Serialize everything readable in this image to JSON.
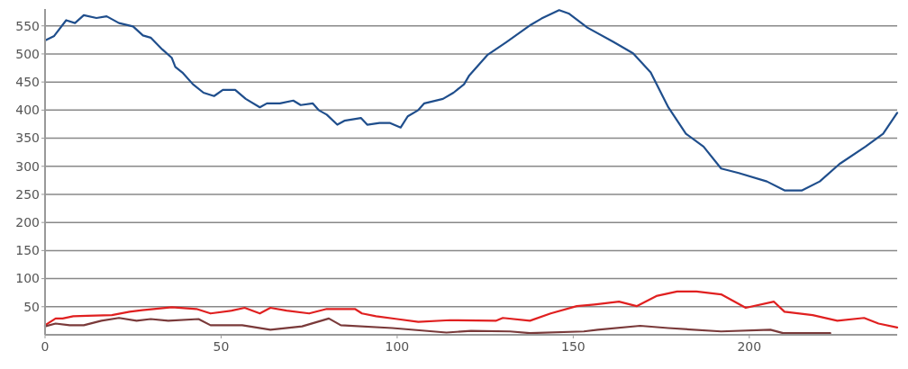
{
  "chart_data": {
    "type": "line",
    "xlim": [
      0,
      242
    ],
    "ylim": [
      0,
      580
    ],
    "xticks": [
      0,
      50,
      100,
      150,
      200
    ],
    "yticks": [
      50,
      100,
      150,
      200,
      250,
      300,
      350,
      400,
      450,
      500,
      550
    ],
    "grid": "y",
    "marker": "none",
    "line_style": "solid",
    "series": [
      {
        "color": "#1f4e8c",
        "x": [
          0,
          2.6,
          6,
          8.5,
          11,
          14.6,
          17.5,
          21,
          25,
          27.8,
          30,
          33.3,
          36,
          37,
          39,
          42,
          45,
          48,
          50.5,
          54,
          57,
          61,
          63,
          66.7,
          70.5,
          72.6,
          76,
          77.7,
          80,
          83,
          85,
          89.7,
          91.5,
          95,
          98,
          101,
          103,
          106,
          107.7,
          113,
          116,
          119,
          120.5,
          125.6,
          131,
          138,
          141,
          146,
          148.7,
          154,
          161.5,
          167,
          172,
          177,
          182,
          187,
          192,
          197,
          205,
          210,
          215,
          220,
          225.6,
          233,
          238,
          242
        ],
        "values": [
          524,
          532,
          560,
          555,
          569,
          564,
          567,
          555,
          549,
          533,
          529,
          508,
          493,
          477,
          467,
          446,
          431,
          425,
          436,
          436,
          420,
          405,
          412,
          412,
          417,
          409,
          412,
          400,
          392,
          374,
          381,
          386,
          374,
          377,
          377,
          369,
          389,
          400,
          412,
          420,
          431,
          446,
          462,
          498,
          521,
          552,
          563,
          578,
          572,
          547,
          521,
          501,
          467,
          405,
          358,
          335,
          296,
          288,
          273,
          257,
          257,
          273,
          304,
          335,
          358,
          395
        ]
      },
      {
        "color": "#e02020",
        "x": [
          0,
          3,
          5,
          8,
          12,
          19,
          24,
          27.6,
          36,
          43,
          47,
          53,
          56.7,
          61,
          64,
          68.6,
          75,
          80,
          88,
          90,
          94,
          100,
          106,
          115,
          128,
          130,
          137.7,
          143.6,
          151,
          156,
          163,
          168,
          173.6,
          179.5,
          185,
          192,
          199,
          207,
          210,
          218,
          225,
          232.6,
          236.7,
          242
        ],
        "values": [
          17,
          29,
          29,
          33,
          34,
          35,
          41,
          44,
          49,
          46,
          38,
          43,
          48,
          38,
          48,
          43,
          38,
          46,
          46,
          38,
          33,
          28,
          23,
          26,
          25,
          30,
          25,
          38,
          51,
          54,
          59,
          51,
          69,
          77,
          77,
          72,
          48,
          59,
          41,
          35,
          25,
          30,
          20,
          13
        ]
      },
      {
        "color": "#7a3a3a",
        "x": [
          0,
          3,
          7,
          11,
          16,
          21,
          26,
          30,
          35,
          43.6,
          47,
          56,
          64,
          73,
          80.6,
          84,
          98.6,
          114,
          121,
          132,
          137.7,
          153,
          157,
          169,
          177,
          192,
          206,
          209.6,
          223
        ],
        "values": [
          15,
          20,
          17,
          17,
          25,
          30,
          25,
          28,
          25,
          28,
          17,
          17,
          9,
          15,
          29,
          17,
          12,
          4,
          7,
          6,
          3,
          6,
          9,
          16,
          12,
          6,
          9,
          3,
          3
        ]
      }
    ]
  }
}
